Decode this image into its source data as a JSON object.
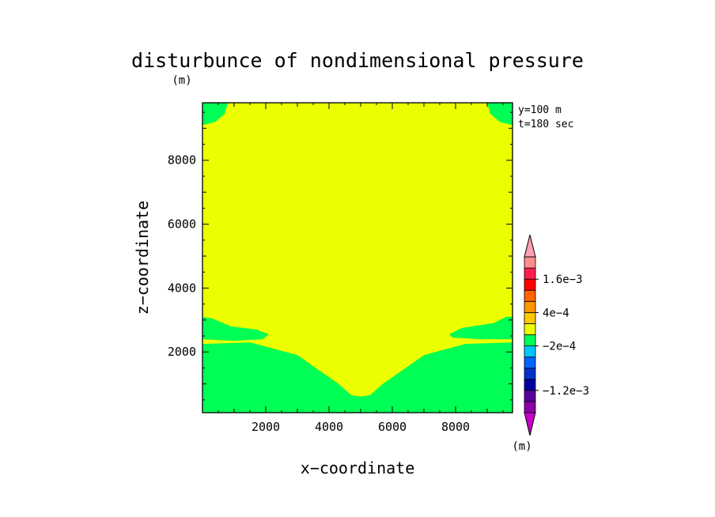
{
  "chart_data": {
    "type": "heatmap",
    "title": "disturbunce of nondimensional pressure",
    "unit_label": "(m)",
    "xlabel": "x−coordinate",
    "ylabel": "z−coordinate",
    "annotation_lines": [
      "y=100  m",
      "t=180  sec"
    ],
    "xlim": [
      0,
      9800
    ],
    "ylim": [
      100,
      9800
    ],
    "x_ticks": [
      2000,
      4000,
      6000,
      8000
    ],
    "y_ticks": [
      2000,
      4000,
      6000,
      8000
    ],
    "x_tick_labels": [
      "2000",
      "4000",
      "6000",
      "8000"
    ],
    "y_tick_labels": [
      "2000",
      "4000",
      "6000",
      "8000"
    ],
    "background_color": "#ebff00",
    "regions": [
      {
        "name": "lower-region",
        "color": "#00ff55",
        "points": [
          [
            0,
            100
          ],
          [
            0,
            2250
          ],
          [
            1500,
            2300
          ],
          [
            3000,
            1900
          ],
          [
            4300,
            1000
          ],
          [
            4700,
            650
          ],
          [
            5000,
            600
          ],
          [
            5300,
            650
          ],
          [
            5700,
            1000
          ],
          [
            7000,
            1900
          ],
          [
            8300,
            2250
          ],
          [
            9800,
            2300
          ],
          [
            9800,
            100
          ]
        ]
      },
      {
        "name": "left-lobe",
        "color": "#00ff55",
        "points": [
          [
            0,
            2900
          ],
          [
            0,
            3100
          ],
          [
            300,
            3050
          ],
          [
            900,
            2800
          ],
          [
            1700,
            2700
          ],
          [
            2100,
            2550
          ],
          [
            1900,
            2400
          ],
          [
            1000,
            2350
          ],
          [
            0,
            2400
          ]
        ]
      },
      {
        "name": "right-lobe",
        "color": "#00ff55",
        "points": [
          [
            9800,
            2400
          ],
          [
            8800,
            2400
          ],
          [
            7900,
            2450
          ],
          [
            7800,
            2550
          ],
          [
            8200,
            2750
          ],
          [
            9200,
            2900
          ],
          [
            9600,
            3100
          ],
          [
            9800,
            3100
          ]
        ]
      },
      {
        "name": "top-left-corner",
        "color": "#00ff55",
        "points": [
          [
            0,
            9800
          ],
          [
            800,
            9800
          ],
          [
            700,
            9450
          ],
          [
            400,
            9200
          ],
          [
            0,
            9100
          ]
        ]
      },
      {
        "name": "top-right-corner",
        "color": "#00ff55",
        "points": [
          [
            9800,
            9800
          ],
          [
            9000,
            9800
          ],
          [
            9100,
            9450
          ],
          [
            9400,
            9200
          ],
          [
            9800,
            9100
          ]
        ]
      }
    ],
    "colorbar": {
      "colors": [
        "#c800c8",
        "#8c00aa",
        "#5a009b",
        "#0000a0",
        "#0032c8",
        "#0064ff",
        "#00c8ff",
        "#00ff55",
        "#ebff00",
        "#ffc800",
        "#ff9600",
        "#ff6400",
        "#ff0000",
        "#ff1e50",
        "#ff8c8c",
        "#ffa0b4"
      ],
      "tick_labels": [
        {
          "label": "1.6e−3",
          "boundary": 13
        },
        {
          "label": "4e−4",
          "boundary": 10
        },
        {
          "label": "−2e−4",
          "boundary": 7
        },
        {
          "label": "−1.2e−3",
          "boundary": 3
        }
      ],
      "unit_label": "(m)"
    }
  }
}
